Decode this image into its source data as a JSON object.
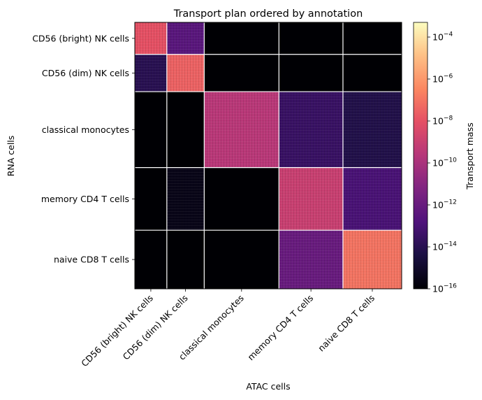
{
  "chart_data": {
    "type": "heatmap",
    "title": "Transport plan ordered by annotation",
    "xlabel": "ATAC cells",
    "ylabel": "RNA cells",
    "categories_x": [
      "CD56 (bright) NK cells",
      "CD56 (dim) NK cells",
      "classical monocytes",
      "memory CD4 T cells",
      "naive CD8 T cells"
    ],
    "categories_y": [
      "CD56 (bright) NK cells",
      "CD56 (dim) NK cells",
      "classical monocytes",
      "memory CD4 T cells",
      "naive CD8 T cells"
    ],
    "group_fractions_x": [
      0.12,
      0.14,
      0.28,
      0.24,
      0.22
    ],
    "group_fractions_y": [
      0.12,
      0.14,
      0.285,
      0.235,
      0.22
    ],
    "values_log10": [
      [
        -8.0,
        -12.5,
        -16.0,
        -16.0,
        -16.0
      ],
      [
        -14.0,
        -7.5,
        -16.0,
        -16.0,
        -16.0
      ],
      [
        -16.0,
        -16.0,
        -9.5,
        -13.5,
        -14.2
      ],
      [
        -16.0,
        -15.5,
        -16.0,
        -9.0,
        -13.0
      ],
      [
        -16.0,
        -16.0,
        -16.0,
        -12.0,
        -7.0
      ]
    ],
    "colorbar": {
      "label": "Transport mass",
      "scale": "log",
      "colormap": "magma",
      "range_log10": [
        -16,
        -3.3
      ],
      "ticks": [
        {
          "base": "10",
          "exp": "−4",
          "log10": -4
        },
        {
          "base": "10",
          "exp": "−6",
          "log10": -6
        },
        {
          "base": "10",
          "exp": "−8",
          "log10": -8
        },
        {
          "base": "10",
          "exp": "−10",
          "log10": -10
        },
        {
          "base": "10",
          "exp": "−12",
          "log10": -12
        },
        {
          "base": "10",
          "exp": "−14",
          "log10": -14
        },
        {
          "base": "10",
          "exp": "−16",
          "log10": -16
        }
      ]
    },
    "grid_lines": "white"
  }
}
